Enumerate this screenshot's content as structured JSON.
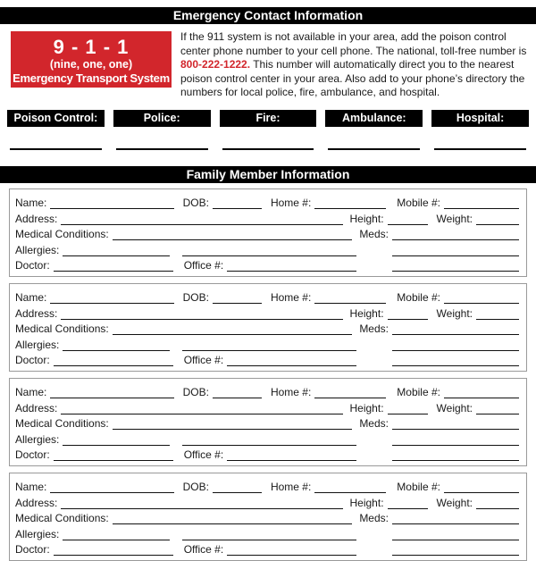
{
  "header": {
    "title": "Emergency Contact Information"
  },
  "intro": {
    "badge": {
      "line1": "9 - 1 - 1",
      "line2": "(nine, one, one)",
      "line3": "Emergency Transport System"
    },
    "paragraph_before": "If the 911 system is not available in your area, add the poison control center phone number to your cell phone. The national, toll-free number is ",
    "phone": "800-222-1222.",
    "paragraph_after": " This number will automatically direct you to the nearest poison control center in your area. Also add to your phone’s directory the numbers for local police, fire, ambulance, and hospital."
  },
  "contacts": {
    "labels": [
      "Poison Control:",
      "Police:",
      "Fire:",
      "Ambulance:",
      "Hospital:"
    ]
  },
  "family": {
    "title": "Family Member Information",
    "member_count": 4,
    "fields": {
      "name": "Name:",
      "dob": "DOB:",
      "home": "Home #:",
      "mobile": "Mobile #:",
      "address": "Address:",
      "height": "Height:",
      "weight": "Weight:",
      "medical": "Medical Conditions:",
      "meds": "Meds:",
      "allergies": "Allergies:",
      "doctor": "Doctor:",
      "office": "Office #:"
    }
  },
  "colors": {
    "accent_red": "#d2262c",
    "bar_black": "#000000",
    "card_border": "#9a9a9a"
  }
}
